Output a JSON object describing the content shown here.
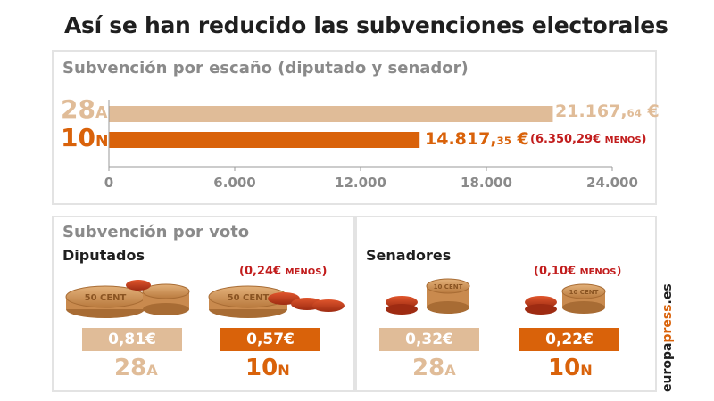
{
  "title": "Así se han reducido las subvenciones electorales",
  "colors": {
    "light": "#e0bc98",
    "dark": "#d9620a",
    "red": "#c21d1d",
    "grey": "#8a8a8a"
  },
  "escano": {
    "heading": "Subvención por escaño (diputado y senador)",
    "rows": [
      {
        "num": "28",
        "suf": "A",
        "val_main": "21.167,",
        "val_cents": "64",
        "val_unit": " €"
      },
      {
        "num": "10",
        "suf": "N",
        "val_main": "14.817,",
        "val_cents": "35",
        "val_unit": " €",
        "diff_main": "(6.350,29€ ",
        "diff_word": "MENOS",
        "diff_close": ")"
      }
    ]
  },
  "voto": {
    "heading": "Subvención por voto",
    "diputados": {
      "label": "Diputados",
      "items": [
        {
          "value": "0,81€",
          "num": "28",
          "suf": "A",
          "coin": "50 CENT"
        },
        {
          "value": "0,57€",
          "num": "10",
          "suf": "N",
          "coin": "50 CENT",
          "diff_main": "(0,24€ ",
          "diff_word": "MENOS",
          "diff_close": ")"
        }
      ]
    },
    "senadores": {
      "label": "Senadores",
      "items": [
        {
          "value": "0,32€",
          "num": "28",
          "suf": "A",
          "coin": "10 CENT"
        },
        {
          "value": "0,22€",
          "num": "10",
          "suf": "N",
          "coin": "10 CENT",
          "diff_main": "(0,10€ ",
          "diff_word": "MENOS",
          "diff_close": ")"
        }
      ]
    }
  },
  "brand": {
    "pre": "europa",
    "mid": "press",
    "post": ".es"
  },
  "chart_data": {
    "type": "bar",
    "orientation": "horizontal",
    "title": "Subvención por escaño (diputado y senador)",
    "categories": [
      "28A",
      "10N"
    ],
    "values": [
      21167.64,
      14817.35
    ],
    "xlim": [
      0,
      24000
    ],
    "xticks": [
      0,
      6000,
      12000,
      18000,
      24000
    ],
    "xtick_labels": [
      "0",
      "6.000",
      "12.000",
      "18.000",
      "24.000"
    ],
    "grid": false
  }
}
